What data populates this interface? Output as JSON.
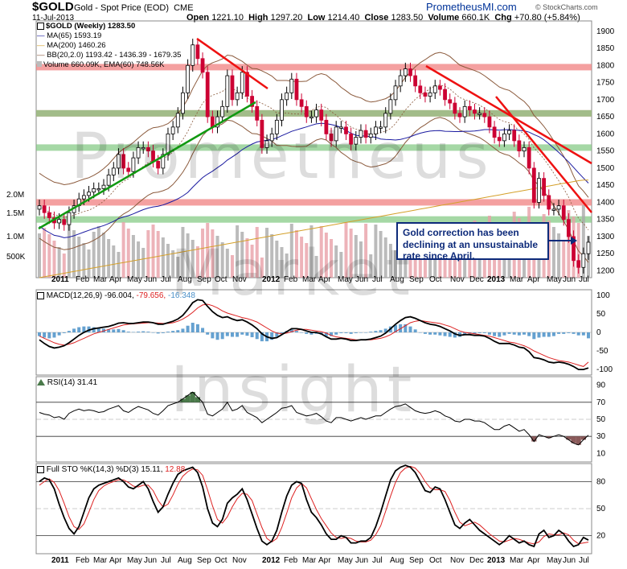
{
  "header": {
    "ticker": "$GOLD",
    "description": "Gold - Spot Price (EOD)",
    "exchange": "CME",
    "date": "11-Jul-2013",
    "open_label": "Open",
    "open": "1221.10",
    "high_label": "High",
    "high": "1297.20",
    "low_label": "Low",
    "low": "1214.40",
    "close_label": "Close",
    "close": "1283.50",
    "volume_label": "Volume",
    "volume": "660.1K",
    "chg_label": "Chg",
    "chg": "+70.80 (+5.84%)",
    "site": "PrometheusMI.com",
    "provider": "© StockCharts.com"
  },
  "legends": {
    "price": "$GOLD (Weekly) 1283.50",
    "ma65": "MA(65) 1593.19",
    "ma200": "MA(200) 1460.26",
    "bb": "BB(20,2.0) 1193.42 - 1436.39 - 1679.35",
    "volume": "Volume 660.09K, EMA(60) 748.56K",
    "macd_label": "MACD(12,26,9)",
    "macd_v1": "-96.004,",
    "macd_v2": "-79.656,",
    "macd_v3": "-16.348",
    "rsi": "RSI(14) 31.41",
    "sto_label": "Full STO %K(14,3) %D(3)",
    "sto_k": "15.11,",
    "sto_d": "12.88"
  },
  "watermark": [
    "Prometheus",
    "Market",
    "Insight"
  ],
  "callout": "Gold correction has been declining at an unsustainable rate since April.",
  "colors": {
    "up_candle": "#000000",
    "down_candle": "#cc0033",
    "ma65": "#1a1aa0",
    "ma200": "#d4a02a",
    "bb": "#8b5a3c",
    "trend_up": "#119911",
    "trend_down": "#ee1111",
    "support_band": "#7fc87f",
    "resist_band": "#f08080",
    "macd_hist": "#4a90c8",
    "signal": "#dd2222",
    "rsi_fill": "#4a7a4a",
    "rsi_fill_low": "#8a5a5a"
  },
  "chart_data": [
    {
      "panel": "price",
      "type": "candlestick",
      "title": "$GOLD (Weekly) 1283.50",
      "y_ticks": [
        1200,
        1250,
        1300,
        1350,
        1400,
        1450,
        1500,
        1550,
        1600,
        1650,
        1700,
        1750,
        1800,
        1850,
        1900
      ],
      "ylim": [
        1180,
        1930
      ],
      "volume_ticks": [
        "500K",
        "1.0M",
        "1.5M",
        "2.0M"
      ],
      "x_labels": [
        "2011",
        "Feb",
        "Mar",
        "Apr",
        "May",
        "Jun",
        "Jul",
        "Aug",
        "Sep",
        "Oct",
        "Nov",
        "2012",
        "Feb",
        "Mar",
        "Apr",
        "May",
        "Jun",
        "Jul",
        "Aug",
        "Sep",
        "Oct",
        "Nov",
        "Dec",
        "2013",
        "Mar",
        "Apr",
        "May",
        "Jun",
        "Jul"
      ],
      "closes": [
        1390,
        1370,
        1355,
        1340,
        1350,
        1335,
        1370,
        1390,
        1410,
        1420,
        1430,
        1440,
        1440,
        1450,
        1480,
        1500,
        1540,
        1500,
        1490,
        1530,
        1560,
        1560,
        1550,
        1520,
        1500,
        1540,
        1600,
        1620,
        1660,
        1720,
        1800,
        1860,
        1820,
        1780,
        1650,
        1620,
        1650,
        1680,
        1770,
        1700,
        1720,
        1780,
        1710,
        1680,
        1640,
        1560,
        1580,
        1600,
        1640,
        1700,
        1720,
        1760,
        1700,
        1680,
        1650,
        1650,
        1670,
        1640,
        1600,
        1580,
        1620,
        1620,
        1600,
        1570,
        1590,
        1610,
        1590,
        1600,
        1620,
        1620,
        1660,
        1700,
        1740,
        1770,
        1790,
        1770,
        1740,
        1720,
        1710,
        1720,
        1740,
        1730,
        1700,
        1690,
        1660,
        1650,
        1680,
        1670,
        1660,
        1660,
        1650,
        1620,
        1590,
        1580,
        1600,
        1610,
        1580,
        1550,
        1560,
        1500,
        1400,
        1470,
        1420,
        1380,
        1380,
        1390,
        1350,
        1300,
        1230,
        1210,
        1250,
        1283.5
      ],
      "resistance_bands": [
        1400,
        1660,
        1795
      ],
      "support_bands": [
        1350,
        1560,
        1660
      ]
    },
    {
      "panel": "macd",
      "type": "line",
      "title": "MACD(12,26,9) -96.004, -79.656, -16.348",
      "y_ticks": [
        100,
        50,
        0,
        -50,
        -100
      ],
      "ylim": [
        -115,
        115
      ],
      "macd": [
        -20,
        -30,
        -38,
        -42,
        -40,
        -36,
        -28,
        -18,
        -8,
        0,
        6,
        10,
        12,
        14,
        16,
        20,
        25,
        26,
        24,
        24,
        26,
        28,
        28,
        26,
        22,
        22,
        26,
        30,
        36,
        46,
        62,
        80,
        88,
        86,
        70,
        56,
        46,
        40,
        42,
        36,
        32,
        34,
        28,
        20,
        10,
        -4,
        -12,
        -16,
        -14,
        -6,
        2,
        10,
        10,
        8,
        4,
        0,
        0,
        -4,
        -12,
        -18,
        -18,
        -16,
        -18,
        -22,
        -22,
        -20,
        -20,
        -18,
        -14,
        -10,
        -2,
        10,
        22,
        32,
        40,
        42,
        38,
        32,
        26,
        22,
        20,
        16,
        10,
        4,
        -4,
        -8,
        -6,
        -6,
        -8,
        -8,
        -10,
        -16,
        -24,
        -30,
        -30,
        -30,
        -34,
        -40,
        -42,
        -52,
        -68,
        -70,
        -74,
        -80,
        -82,
        -80,
        -82,
        -86,
        -92,
        -100,
        -100,
        -96
      ],
      "signal": [
        -10,
        -16,
        -22,
        -28,
        -32,
        -34,
        -32,
        -28,
        -22,
        -16,
        -10,
        -4,
        0,
        4,
        8,
        12,
        16,
        20,
        22,
        23,
        24,
        25,
        26,
        26,
        25,
        24,
        24,
        26,
        30,
        36,
        44,
        54,
        66,
        74,
        76,
        72,
        66,
        58,
        52,
        48,
        44,
        40,
        37,
        33,
        28,
        20,
        12,
        4,
        -2,
        -4,
        -2,
        2,
        6,
        8,
        8,
        6,
        4,
        2,
        -2,
        -8,
        -12,
        -14,
        -16,
        -18,
        -20,
        -20,
        -20,
        -20,
        -18,
        -16,
        -12,
        -6,
        2,
        10,
        18,
        26,
        30,
        32,
        30,
        28,
        26,
        24,
        20,
        16,
        10,
        4,
        0,
        -2,
        -4,
        -6,
        -8,
        -10,
        -14,
        -18,
        -22,
        -26,
        -28,
        -32,
        -36,
        -42,
        -50,
        -56,
        -62,
        -68,
        -72,
        -76,
        -78,
        -80,
        -84,
        -88,
        -92,
        -80
      ],
      "hist": [
        -10,
        -14,
        -16,
        -14,
        -8,
        -2,
        4,
        10,
        14,
        16,
        16,
        14,
        12,
        10,
        8,
        8,
        9,
        6,
        2,
        1,
        2,
        3,
        2,
        0,
        -3,
        -2,
        2,
        4,
        6,
        10,
        18,
        26,
        22,
        12,
        -6,
        -16,
        -20,
        -18,
        -10,
        -12,
        -12,
        -6,
        -9,
        -13,
        -18,
        -24,
        -24,
        -20,
        -12,
        -2,
        4,
        8,
        4,
        0,
        -4,
        -6,
        -4,
        -6,
        -10,
        -10,
        -6,
        -2,
        -2,
        -4,
        -2,
        0,
        0,
        2,
        4,
        6,
        10,
        16,
        20,
        22,
        22,
        16,
        8,
        0,
        -4,
        -6,
        -6,
        -8,
        -10,
        -12,
        -14,
        -12,
        -6,
        -4,
        -4,
        -2,
        -2,
        -6,
        -10,
        -12,
        -8,
        -4,
        -6,
        -8,
        -6,
        -10,
        -18,
        -14,
        -12,
        -12,
        -10,
        -4,
        -4,
        -2,
        -4,
        -8,
        -8,
        -16
      ]
    },
    {
      "panel": "rsi",
      "type": "line",
      "title": "RSI(14) 31.41",
      "y_ticks": [
        90,
        70,
        50,
        30,
        10
      ],
      "ylim": [
        0,
        100
      ],
      "values": [
        58,
        56,
        55,
        52,
        53,
        50,
        57,
        60,
        62,
        60,
        61,
        60,
        58,
        59,
        62,
        64,
        66,
        60,
        58,
        62,
        65,
        63,
        61,
        57,
        55,
        60,
        66,
        68,
        70,
        74,
        78,
        82,
        76,
        70,
        56,
        54,
        58,
        62,
        70,
        60,
        62,
        66,
        58,
        55,
        52,
        46,
        50,
        54,
        58,
        63,
        64,
        66,
        58,
        56,
        54,
        55,
        57,
        53,
        48,
        46,
        52,
        52,
        50,
        48,
        50,
        52,
        50,
        52,
        54,
        54,
        58,
        62,
        65,
        66,
        68,
        64,
        60,
        58,
        57,
        58,
        60,
        58,
        54,
        52,
        48,
        47,
        50,
        50,
        48,
        48,
        46,
        42,
        38,
        38,
        42,
        44,
        40,
        36,
        38,
        32,
        24,
        32,
        30,
        28,
        30,
        32,
        30,
        26,
        22,
        20,
        26,
        31.41
      ]
    },
    {
      "panel": "stochastic",
      "type": "line",
      "title": "Full STO %K(14,3) %D(3) 15.11, 12.88",
      "y_ticks": [
        80,
        50,
        20
      ],
      "ylim": [
        0,
        100
      ],
      "k": [
        80,
        84,
        82,
        72,
        55,
        40,
        28,
        22,
        30,
        46,
        62,
        72,
        76,
        78,
        80,
        82,
        84,
        80,
        74,
        72,
        76,
        80,
        72,
        58,
        46,
        52,
        66,
        78,
        88,
        92,
        94,
        96,
        90,
        74,
        50,
        34,
        30,
        38,
        56,
        62,
        66,
        72,
        60,
        44,
        28,
        14,
        10,
        14,
        26,
        46,
        64,
        76,
        80,
        78,
        60,
        46,
        40,
        32,
        22,
        16,
        16,
        20,
        18,
        12,
        12,
        14,
        14,
        18,
        30,
        46,
        64,
        82,
        92,
        96,
        98,
        96,
        90,
        80,
        70,
        68,
        74,
        72,
        60,
        46,
        32,
        28,
        34,
        38,
        32,
        26,
        22,
        18,
        14,
        10,
        14,
        20,
        16,
        12,
        14,
        10,
        8,
        22,
        26,
        18,
        20,
        26,
        22,
        14,
        8,
        10,
        18,
        15.11
      ],
      "d": [
        76,
        80,
        83,
        79,
        70,
        56,
        41,
        30,
        27,
        33,
        46,
        60,
        70,
        75,
        78,
        80,
        82,
        82,
        79,
        75,
        74,
        76,
        76,
        70,
        59,
        52,
        55,
        65,
        77,
        86,
        91,
        94,
        93,
        87,
        71,
        53,
        38,
        34,
        41,
        52,
        61,
        67,
        66,
        59,
        44,
        29,
        17,
        13,
        17,
        29,
        45,
        62,
        73,
        78,
        73,
        61,
        49,
        39,
        31,
        23,
        18,
        17,
        18,
        17,
        14,
        13,
        13,
        15,
        21,
        31,
        47,
        64,
        79,
        90,
        95,
        97,
        95,
        89,
        80,
        73,
        71,
        71,
        69,
        59,
        46,
        35,
        31,
        33,
        35,
        32,
        27,
        22,
        18,
        14,
        13,
        15,
        17,
        16,
        14,
        12,
        11,
        13,
        19,
        22,
        21,
        21,
        23,
        21,
        15,
        11,
        12,
        12.88
      ]
    }
  ]
}
